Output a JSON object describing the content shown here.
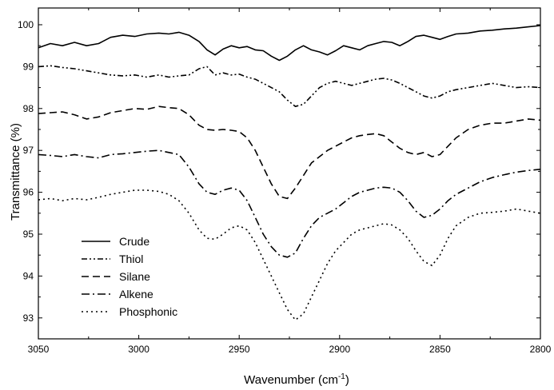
{
  "chart_data": {
    "type": "line",
    "xlabel": "Wavenumber (cm",
    "xlabel_sup": "-1",
    "xlabel_suffix": ")",
    "ylabel": "Transmittance (%)",
    "xlim": [
      3050,
      2800
    ],
    "ylim": [
      92.5,
      100.4
    ],
    "x_ticks": [
      3050,
      3000,
      2950,
      2900,
      2850,
      2800
    ],
    "x_tick_labels": [
      "3050",
      "3000",
      "2950",
      "2900",
      "2850",
      "2800"
    ],
    "y_ticks": [
      93,
      94,
      95,
      96,
      97,
      98,
      99,
      100
    ],
    "y_tick_labels": [
      "93",
      "94",
      "95",
      "96",
      "97",
      "98",
      "99",
      "100"
    ],
    "grid": false,
    "legend_position": "bottom-left",
    "series": [
      {
        "name": "Crude",
        "dash": "solid",
        "x": [
          3050,
          3044,
          3038,
          3032,
          3026,
          3020,
          3014,
          3008,
          3002,
          2996,
          2990,
          2985,
          2980,
          2975,
          2970,
          2966,
          2962,
          2958,
          2954,
          2950,
          2946,
          2942,
          2938,
          2934,
          2930,
          2926,
          2922,
          2918,
          2914,
          2910,
          2906,
          2902,
          2898,
          2894,
          2890,
          2886,
          2882,
          2878,
          2874,
          2870,
          2866,
          2862,
          2858,
          2854,
          2850,
          2846,
          2842,
          2836,
          2830,
          2824,
          2818,
          2812,
          2806,
          2800
        ],
        "y": [
          99.45,
          99.55,
          99.5,
          99.58,
          99.5,
          99.55,
          99.7,
          99.75,
          99.72,
          99.78,
          99.8,
          99.78,
          99.82,
          99.75,
          99.6,
          99.4,
          99.28,
          99.42,
          99.5,
          99.45,
          99.48,
          99.4,
          99.38,
          99.25,
          99.15,
          99.25,
          99.4,
          99.5,
          99.4,
          99.35,
          99.28,
          99.38,
          99.5,
          99.45,
          99.4,
          99.5,
          99.55,
          99.6,
          99.58,
          99.5,
          99.6,
          99.72,
          99.75,
          99.7,
          99.65,
          99.72,
          99.78,
          99.8,
          99.85,
          99.87,
          99.9,
          99.92,
          99.95,
          99.98
        ]
      },
      {
        "name": "Thiol",
        "dash": "dash-dot-dot",
        "x": [
          3050,
          3044,
          3038,
          3032,
          3026,
          3020,
          3014,
          3008,
          3002,
          2996,
          2990,
          2985,
          2980,
          2975,
          2970,
          2966,
          2962,
          2958,
          2954,
          2950,
          2946,
          2942,
          2938,
          2934,
          2930,
          2926,
          2922,
          2918,
          2914,
          2910,
          2906,
          2902,
          2898,
          2894,
          2890,
          2886,
          2882,
          2878,
          2874,
          2870,
          2866,
          2862,
          2858,
          2854,
          2850,
          2846,
          2842,
          2836,
          2830,
          2824,
          2818,
          2812,
          2806,
          2800
        ],
        "y": [
          99.0,
          99.02,
          98.98,
          98.95,
          98.9,
          98.85,
          98.8,
          98.78,
          98.8,
          98.75,
          98.8,
          98.75,
          98.78,
          98.8,
          98.95,
          99.0,
          98.8,
          98.85,
          98.8,
          98.82,
          98.75,
          98.7,
          98.6,
          98.5,
          98.4,
          98.2,
          98.05,
          98.1,
          98.3,
          98.5,
          98.6,
          98.65,
          98.6,
          98.55,
          98.6,
          98.65,
          98.7,
          98.72,
          98.68,
          98.6,
          98.5,
          98.4,
          98.3,
          98.25,
          98.3,
          98.4,
          98.45,
          98.5,
          98.55,
          98.6,
          98.55,
          98.5,
          98.52,
          98.5
        ]
      },
      {
        "name": "Silane",
        "dash": "dash",
        "x": [
          3050,
          3044,
          3038,
          3032,
          3026,
          3020,
          3014,
          3008,
          3002,
          2996,
          2990,
          2985,
          2980,
          2975,
          2970,
          2966,
          2962,
          2958,
          2954,
          2950,
          2946,
          2942,
          2938,
          2934,
          2930,
          2926,
          2922,
          2918,
          2914,
          2910,
          2906,
          2902,
          2898,
          2894,
          2890,
          2886,
          2882,
          2878,
          2874,
          2870,
          2866,
          2862,
          2858,
          2854,
          2850,
          2846,
          2842,
          2836,
          2830,
          2824,
          2818,
          2812,
          2806,
          2800
        ],
        "y": [
          97.88,
          97.9,
          97.92,
          97.85,
          97.75,
          97.8,
          97.9,
          97.95,
          98.0,
          97.98,
          98.05,
          98.02,
          98.0,
          97.85,
          97.6,
          97.5,
          97.48,
          97.5,
          97.48,
          97.45,
          97.3,
          97.0,
          96.6,
          96.2,
          95.9,
          95.85,
          96.1,
          96.4,
          96.7,
          96.85,
          97.0,
          97.1,
          97.2,
          97.3,
          97.35,
          97.38,
          97.4,
          97.35,
          97.2,
          97.05,
          96.95,
          96.9,
          96.95,
          96.85,
          96.9,
          97.1,
          97.3,
          97.5,
          97.6,
          97.65,
          97.65,
          97.7,
          97.75,
          97.72
        ]
      },
      {
        "name": "Alkene",
        "dash": "dash-dot",
        "x": [
          3050,
          3044,
          3038,
          3032,
          3026,
          3020,
          3014,
          3008,
          3002,
          2996,
          2990,
          2985,
          2980,
          2975,
          2970,
          2966,
          2962,
          2958,
          2954,
          2950,
          2946,
          2942,
          2938,
          2934,
          2930,
          2926,
          2922,
          2918,
          2914,
          2910,
          2906,
          2902,
          2898,
          2894,
          2890,
          2886,
          2882,
          2878,
          2874,
          2870,
          2866,
          2862,
          2858,
          2854,
          2850,
          2846,
          2842,
          2836,
          2830,
          2824,
          2818,
          2812,
          2806,
          2800
        ],
        "y": [
          96.9,
          96.88,
          96.85,
          96.9,
          96.85,
          96.82,
          96.9,
          96.92,
          96.95,
          96.98,
          97.0,
          96.95,
          96.9,
          96.6,
          96.2,
          96.0,
          95.95,
          96.05,
          96.1,
          96.05,
          95.8,
          95.4,
          95.0,
          94.7,
          94.5,
          94.45,
          94.55,
          94.9,
          95.2,
          95.4,
          95.5,
          95.6,
          95.75,
          95.9,
          96.0,
          96.05,
          96.1,
          96.12,
          96.1,
          96.0,
          95.8,
          95.55,
          95.4,
          95.45,
          95.6,
          95.8,
          95.95,
          96.1,
          96.25,
          96.35,
          96.42,
          96.48,
          96.52,
          96.55
        ]
      },
      {
        "name": "Phosphonic",
        "dash": "dot",
        "x": [
          3050,
          3044,
          3038,
          3032,
          3026,
          3020,
          3014,
          3008,
          3002,
          2996,
          2990,
          2985,
          2980,
          2975,
          2970,
          2966,
          2962,
          2958,
          2954,
          2950,
          2946,
          2942,
          2938,
          2934,
          2930,
          2926,
          2922,
          2918,
          2914,
          2910,
          2906,
          2902,
          2898,
          2894,
          2890,
          2886,
          2882,
          2878,
          2874,
          2870,
          2866,
          2862,
          2858,
          2854,
          2850,
          2846,
          2842,
          2836,
          2830,
          2824,
          2818,
          2812,
          2806,
          2800
        ],
        "y": [
          95.82,
          95.85,
          95.8,
          95.85,
          95.82,
          95.88,
          95.95,
          96.0,
          96.05,
          96.05,
          96.02,
          95.95,
          95.8,
          95.5,
          95.1,
          94.9,
          94.88,
          95.0,
          95.15,
          95.2,
          95.1,
          94.8,
          94.4,
          94.0,
          93.6,
          93.2,
          92.95,
          93.1,
          93.5,
          93.9,
          94.3,
          94.6,
          94.8,
          95.0,
          95.1,
          95.15,
          95.2,
          95.25,
          95.22,
          95.1,
          94.9,
          94.6,
          94.35,
          94.25,
          94.5,
          94.9,
          95.2,
          95.4,
          95.5,
          95.52,
          95.55,
          95.6,
          95.55,
          95.5
        ]
      }
    ]
  }
}
